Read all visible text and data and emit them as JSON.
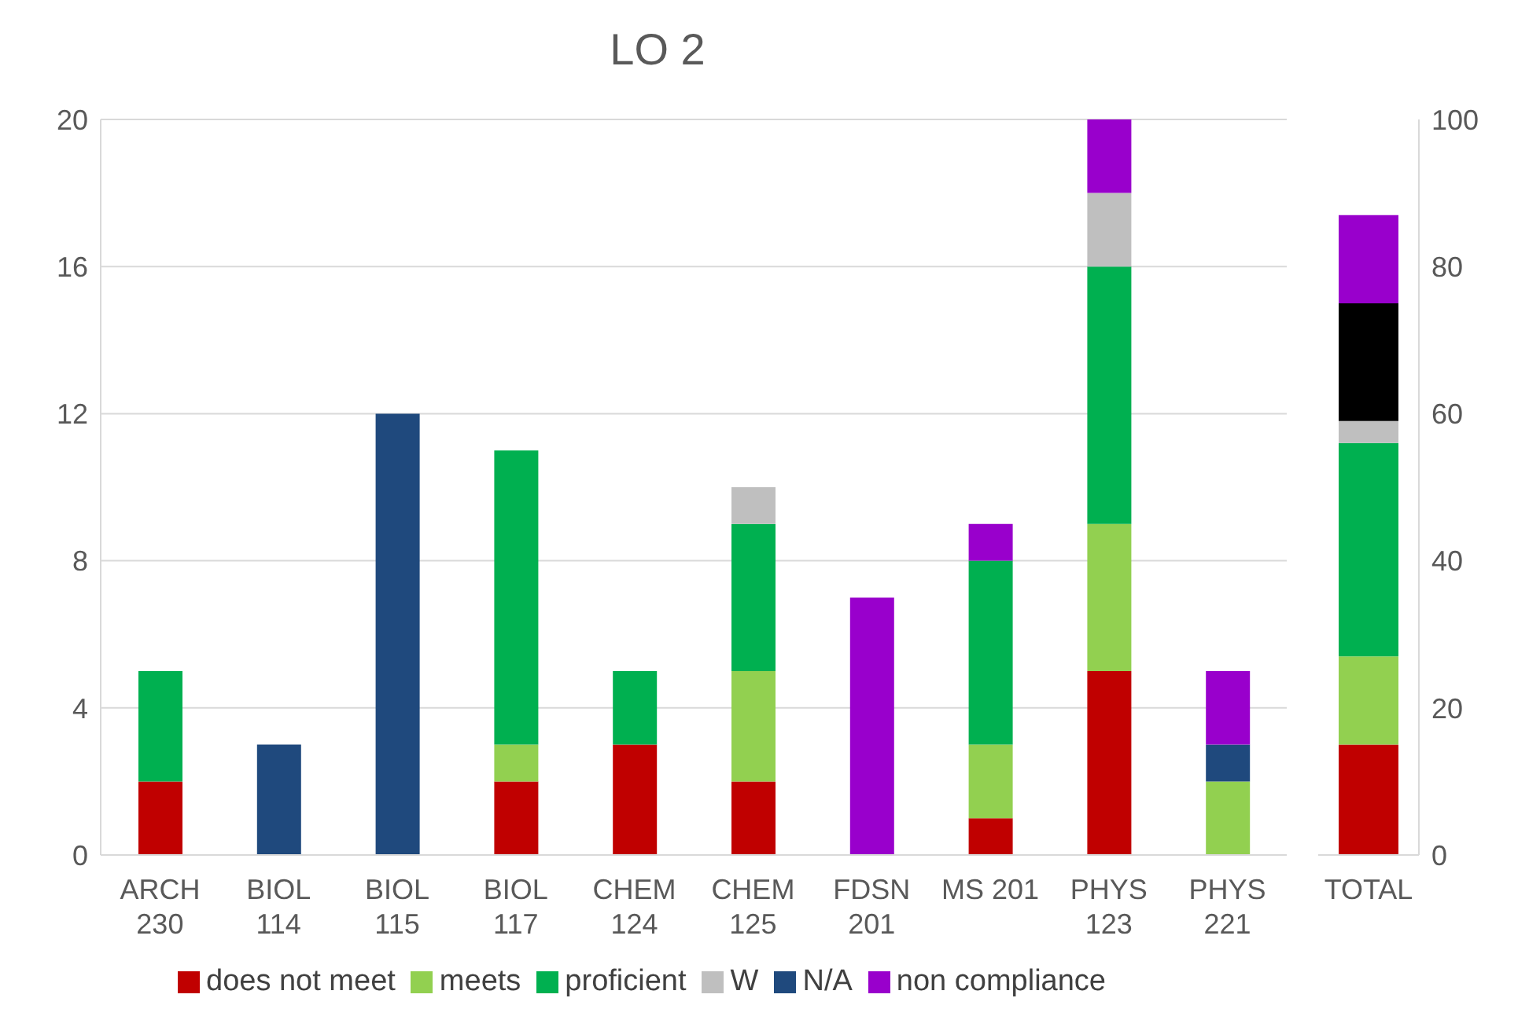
{
  "chart_data": [
    {
      "type": "bar",
      "title": "LO 2",
      "categories": [
        "ARCH 230",
        "BIOL 114",
        "BIOL 115",
        "BIOL 117",
        "CHEM 124",
        "CHEM 125",
        "FDSN 201",
        "MS 201",
        "PHYS 123",
        "PHYS 221"
      ],
      "stacked": true,
      "ylim": [
        0,
        20
      ],
      "yticks": [
        0,
        4,
        8,
        12,
        16,
        20
      ],
      "grid": "y",
      "legend": "bottom",
      "series": [
        {
          "name": "does not meet",
          "color": "#c00000",
          "values": [
            2,
            0,
            0,
            2,
            3,
            2,
            0,
            1,
            5,
            0
          ]
        },
        {
          "name": "meets",
          "color": "#92d050",
          "values": [
            0,
            0,
            0,
            1,
            0,
            3,
            0,
            2,
            4,
            2
          ]
        },
        {
          "name": "proficient",
          "color": "#00b050",
          "values": [
            3,
            0,
            0,
            8,
            2,
            4,
            0,
            5,
            7,
            0
          ]
        },
        {
          "name": "W",
          "color": "#bfbfbf",
          "values": [
            0,
            0,
            0,
            0,
            0,
            1,
            0,
            0,
            2,
            0
          ]
        },
        {
          "name": "N/A",
          "color": "#1f497d",
          "values": [
            0,
            3,
            12,
            0,
            0,
            0,
            0,
            0,
            0,
            1
          ]
        },
        {
          "name": "non compliance",
          "color": "#9900cc",
          "values": [
            0,
            0,
            0,
            0,
            0,
            0,
            7,
            1,
            2,
            2
          ]
        }
      ]
    },
    {
      "type": "bar",
      "categories": [
        "TOTAL"
      ],
      "stacked": true,
      "ylim": [
        0,
        100
      ],
      "yticks": [
        0,
        20,
        40,
        60,
        80,
        100
      ],
      "series": [
        {
          "color": "#c00000",
          "values": [
            15
          ]
        },
        {
          "color": "#92d050",
          "values": [
            12
          ]
        },
        {
          "color": "#00b050",
          "values": [
            29
          ]
        },
        {
          "color": "#bfbfbf",
          "values": [
            3
          ]
        },
        {
          "color": "#000000",
          "values": [
            16
          ]
        },
        {
          "color": "#9900cc",
          "values": [
            12
          ]
        }
      ]
    }
  ]
}
